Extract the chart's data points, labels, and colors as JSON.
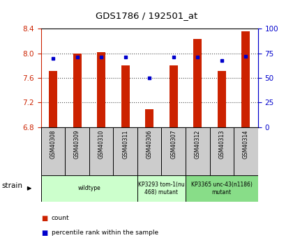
{
  "title": "GDS1786 / 192501_at",
  "samples": [
    "GSM40308",
    "GSM40309",
    "GSM40310",
    "GSM40311",
    "GSM40306",
    "GSM40307",
    "GSM40312",
    "GSM40313",
    "GSM40314"
  ],
  "count_values": [
    7.72,
    8.0,
    8.02,
    7.8,
    7.09,
    7.8,
    8.24,
    7.72,
    8.36
  ],
  "percentile_values": [
    70,
    71,
    71,
    71,
    50,
    71,
    71,
    68,
    72
  ],
  "ylim_left": [
    6.8,
    8.4
  ],
  "ylim_right": [
    0,
    100
  ],
  "yticks_left": [
    6.8,
    7.2,
    7.6,
    8.0,
    8.4
  ],
  "yticks_right": [
    0,
    25,
    50,
    75,
    100
  ],
  "bar_color": "#cc2200",
  "dot_color": "#0000cc",
  "background_color": "#ffffff",
  "strain_groups": [
    {
      "label": "wildtype",
      "start": 0,
      "end": 4,
      "color": "#ccffcc"
    },
    {
      "label": "KP3293 tom-1(nu\n468) mutant",
      "start": 4,
      "end": 6,
      "color": "#ccffcc"
    },
    {
      "label": "KP3365 unc-43(n1186)\nmutant",
      "start": 6,
      "end": 9,
      "color": "#88dd88"
    }
  ],
  "legend_items": [
    {
      "color": "#cc2200",
      "label": "count"
    },
    {
      "color": "#0000cc",
      "label": "percentile rank within the sample"
    }
  ],
  "left_axis_color": "#cc2200",
  "right_axis_color": "#0000cc",
  "bar_width": 0.35,
  "base_value": 6.8,
  "sample_box_color": "#cccccc",
  "grid_ticks": [
    7.2,
    7.6,
    8.0
  ]
}
